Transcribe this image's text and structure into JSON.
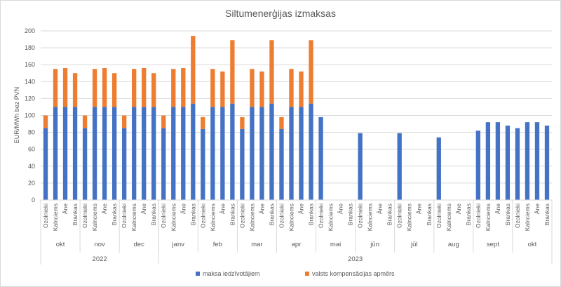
{
  "chart_data": {
    "type": "bar",
    "stacked": true,
    "title": "Siltumenerģijas izmaksas",
    "ylabel": "EUR/MWh bez PVN",
    "ylim": [
      0,
      200
    ],
    "yticks": [
      "0",
      "20",
      "40",
      "60",
      "80",
      "100",
      "120",
      "140",
      "160",
      "180",
      "200"
    ],
    "ytick_values": [
      0,
      20,
      40,
      60,
      80,
      100,
      120,
      140,
      160,
      180,
      200
    ],
    "grid": true,
    "legend_position": "bottom",
    "series": [
      {
        "name": "maksa iedzīvotājiem",
        "color": "#4472c4"
      },
      {
        "name": "valsts kompensācijas apmērs",
        "color": "#ed7d31"
      }
    ],
    "years": [
      {
        "label": "2022",
        "groups": 3
      },
      {
        "label": "2023",
        "groups": 10
      }
    ],
    "groups": [
      {
        "month": "okt",
        "categories": [
          "Ozolnieki",
          "Kalnciems",
          "Āne",
          "Brankas"
        ],
        "base": [
          85,
          110,
          110,
          110
        ],
        "comp": [
          15,
          45,
          46,
          40
        ]
      },
      {
        "month": "nov",
        "categories": [
          "Ozolnieki",
          "Kalnciems",
          "Āne",
          "Brankas"
        ],
        "base": [
          85,
          110,
          110,
          110
        ],
        "comp": [
          15,
          45,
          46,
          40
        ]
      },
      {
        "month": "dec",
        "categories": [
          "Ozolnieki",
          "Kalnciems",
          "Āne",
          "Brankas"
        ],
        "base": [
          85,
          110,
          110,
          110
        ],
        "comp": [
          15,
          45,
          46,
          40
        ]
      },
      {
        "month": "janv",
        "categories": [
          "Ozolnieki",
          "Kalnciems",
          "Āne",
          "Brankas"
        ],
        "base": [
          85,
          110,
          110,
          114
        ],
        "comp": [
          15,
          45,
          46,
          80
        ]
      },
      {
        "month": "feb",
        "categories": [
          "Ozolnieki",
          "Kalnciems",
          "Āne",
          "Brankas"
        ],
        "base": [
          84,
          110,
          110,
          114
        ],
        "comp": [
          14,
          45,
          42,
          75
        ]
      },
      {
        "month": "mar",
        "categories": [
          "Ozolnieki",
          "Kalnciems",
          "Āne",
          "Brankas"
        ],
        "base": [
          84,
          110,
          110,
          114
        ],
        "comp": [
          14,
          45,
          42,
          75
        ]
      },
      {
        "month": "apr",
        "categories": [
          "Ozolnieki",
          "Kalnciems",
          "Āne",
          "Brankas"
        ],
        "base": [
          84,
          110,
          110,
          114
        ],
        "comp": [
          14,
          45,
          42,
          75
        ]
      },
      {
        "month": "mai",
        "categories": [
          "Ozolnieki",
          "Kalnciems",
          "Āne",
          "Brankas"
        ],
        "base": [
          98,
          0,
          0,
          0
        ],
        "comp": [
          0,
          0,
          0,
          0
        ]
      },
      {
        "month": "jūn",
        "categories": [
          "Ozolnieki",
          "Kalnciems",
          "Āne",
          "Brankas"
        ],
        "base": [
          79,
          0,
          0,
          0
        ],
        "comp": [
          0,
          0,
          0,
          0
        ]
      },
      {
        "month": "jūl",
        "categories": [
          "Ozolnieki",
          "Kalnciems",
          "Āne",
          "Brankas"
        ],
        "base": [
          79,
          0,
          0,
          0
        ],
        "comp": [
          0,
          0,
          0,
          0
        ]
      },
      {
        "month": "aug",
        "categories": [
          "Ozolnieki",
          "Kalnciems",
          "Āne",
          "Brankas"
        ],
        "base": [
          74,
          0,
          0,
          0
        ],
        "comp": [
          0,
          0,
          0,
          0
        ]
      },
      {
        "month": "sept",
        "categories": [
          "Ozolnieki",
          "Kalnciems",
          "Āne",
          "Brankas"
        ],
        "base": [
          82,
          92,
          92,
          88
        ],
        "comp": [
          0,
          0,
          0,
          0
        ]
      },
      {
        "month": "okt",
        "categories": [
          "Ozolnieki",
          "Kalnciems",
          "Āne",
          "Brankas"
        ],
        "base": [
          85,
          92,
          92,
          88
        ],
        "comp": [
          0,
          0,
          0,
          0
        ]
      }
    ]
  }
}
